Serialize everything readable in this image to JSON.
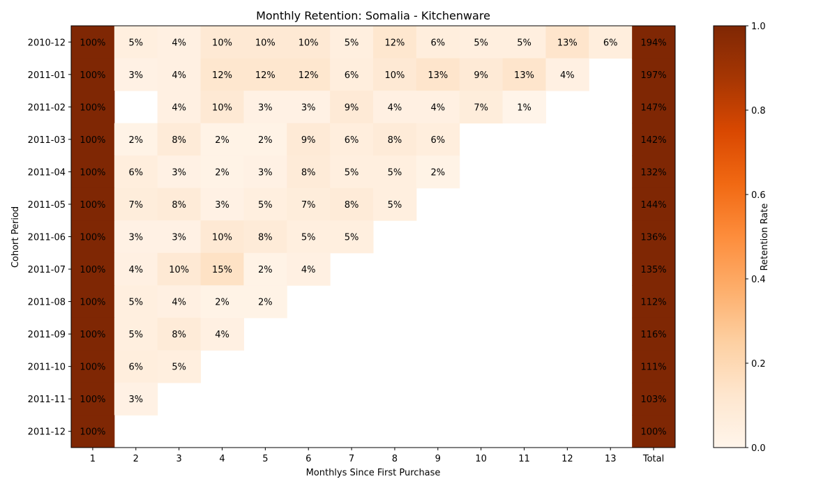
{
  "chart_data": {
    "type": "heatmap",
    "title": "Monthly Retention: Somalia - Kitchenware",
    "xlabel": "Monthlys Since First Purchase",
    "ylabel": "Cohort Period",
    "x_categories": [
      "1",
      "2",
      "3",
      "4",
      "5",
      "6",
      "7",
      "8",
      "9",
      "10",
      "11",
      "12",
      "13",
      "Total"
    ],
    "y_categories": [
      "2010-12",
      "2011-01",
      "2011-02",
      "2011-03",
      "2011-04",
      "2011-05",
      "2011-06",
      "2011-07",
      "2011-08",
      "2011-09",
      "2011-10",
      "2011-11",
      "2011-12"
    ],
    "values": [
      [
        1.0,
        0.05,
        0.04,
        0.1,
        0.1,
        0.1,
        0.05,
        0.12,
        0.06,
        0.05,
        0.05,
        0.13,
        0.06,
        1.94
      ],
      [
        1.0,
        0.03,
        0.04,
        0.12,
        0.12,
        0.12,
        0.06,
        0.1,
        0.13,
        0.09,
        0.13,
        0.04,
        null,
        1.97
      ],
      [
        1.0,
        null,
        0.04,
        0.1,
        0.03,
        0.03,
        0.09,
        0.04,
        0.04,
        0.07,
        0.01,
        null,
        null,
        1.47
      ],
      [
        1.0,
        0.02,
        0.08,
        0.02,
        0.02,
        0.09,
        0.06,
        0.08,
        0.06,
        null,
        null,
        null,
        null,
        1.42
      ],
      [
        1.0,
        0.06,
        0.03,
        0.02,
        0.03,
        0.08,
        0.05,
        0.05,
        0.02,
        null,
        null,
        null,
        null,
        1.32
      ],
      [
        1.0,
        0.07,
        0.08,
        0.03,
        0.05,
        0.07,
        0.08,
        0.05,
        null,
        null,
        null,
        null,
        null,
        1.44
      ],
      [
        1.0,
        0.03,
        0.03,
        0.1,
        0.08,
        0.05,
        0.05,
        null,
        null,
        null,
        null,
        null,
        null,
        1.36
      ],
      [
        1.0,
        0.04,
        0.1,
        0.15,
        0.02,
        0.04,
        null,
        null,
        null,
        null,
        null,
        null,
        null,
        1.35
      ],
      [
        1.0,
        0.05,
        0.04,
        0.02,
        0.02,
        null,
        null,
        null,
        null,
        null,
        null,
        null,
        null,
        1.12
      ],
      [
        1.0,
        0.05,
        0.08,
        0.04,
        null,
        null,
        null,
        null,
        null,
        null,
        null,
        null,
        null,
        1.16
      ],
      [
        1.0,
        0.06,
        0.05,
        null,
        null,
        null,
        null,
        null,
        null,
        null,
        null,
        null,
        null,
        1.11
      ],
      [
        1.0,
        0.03,
        null,
        null,
        null,
        null,
        null,
        null,
        null,
        null,
        null,
        null,
        null,
        1.03
      ],
      [
        1.0,
        null,
        null,
        null,
        null,
        null,
        null,
        null,
        null,
        null,
        null,
        null,
        null,
        1.0
      ]
    ],
    "labels": [
      [
        "100%",
        "5%",
        "4%",
        "10%",
        "10%",
        "10%",
        "5%",
        "12%",
        "6%",
        "5%",
        "5%",
        "13%",
        "6%",
        "194%"
      ],
      [
        "100%",
        "3%",
        "4%",
        "12%",
        "12%",
        "12%",
        "6%",
        "10%",
        "13%",
        "9%",
        "13%",
        "4%",
        "",
        "197%"
      ],
      [
        "100%",
        "",
        "4%",
        "10%",
        "3%",
        "3%",
        "9%",
        "4%",
        "4%",
        "7%",
        "1%",
        "",
        "",
        "147%"
      ],
      [
        "100%",
        "2%",
        "8%",
        "2%",
        "2%",
        "9%",
        "6%",
        "8%",
        "6%",
        "",
        "",
        "",
        "",
        "142%"
      ],
      [
        "100%",
        "6%",
        "3%",
        "2%",
        "3%",
        "8%",
        "5%",
        "5%",
        "2%",
        "",
        "",
        "",
        "",
        "132%"
      ],
      [
        "100%",
        "7%",
        "8%",
        "3%",
        "5%",
        "7%",
        "8%",
        "5%",
        "",
        "",
        "",
        "",
        "",
        "144%"
      ],
      [
        "100%",
        "3%",
        "3%",
        "10%",
        "8%",
        "5%",
        "5%",
        "",
        "",
        "",
        "",
        "",
        "",
        "136%"
      ],
      [
        "100%",
        "4%",
        "10%",
        "15%",
        "2%",
        "4%",
        "",
        "",
        "",
        "",
        "",
        "",
        "",
        "135%"
      ],
      [
        "100%",
        "5%",
        "4%",
        "2%",
        "2%",
        "",
        "",
        "",
        "",
        "",
        "",
        "",
        "",
        "112%"
      ],
      [
        "100%",
        "5%",
        "8%",
        "4%",
        "",
        "",
        "",
        "",
        "",
        "",
        "",
        "",
        "",
        "116%"
      ],
      [
        "100%",
        "6%",
        "5%",
        "",
        "",
        "",
        "",
        "",
        "",
        "",
        "",
        "",
        "",
        "111%"
      ],
      [
        "100%",
        "3%",
        "",
        "",
        "",
        "",
        "",
        "",
        "",
        "",
        "",
        "",
        "",
        "103%"
      ],
      [
        "100%",
        "",
        "",
        "",
        "",
        "",
        "",
        "",
        "",
        "",
        "",
        "",
        "",
        "100%"
      ]
    ],
    "colorbar": {
      "label": "Retention Rate",
      "min": 0.0,
      "max": 1.0,
      "ticks": [
        "0.0",
        "0.2",
        "0.4",
        "0.6",
        "0.8",
        "1.0"
      ],
      "colormap": "Oranges"
    },
    "grid": false
  }
}
